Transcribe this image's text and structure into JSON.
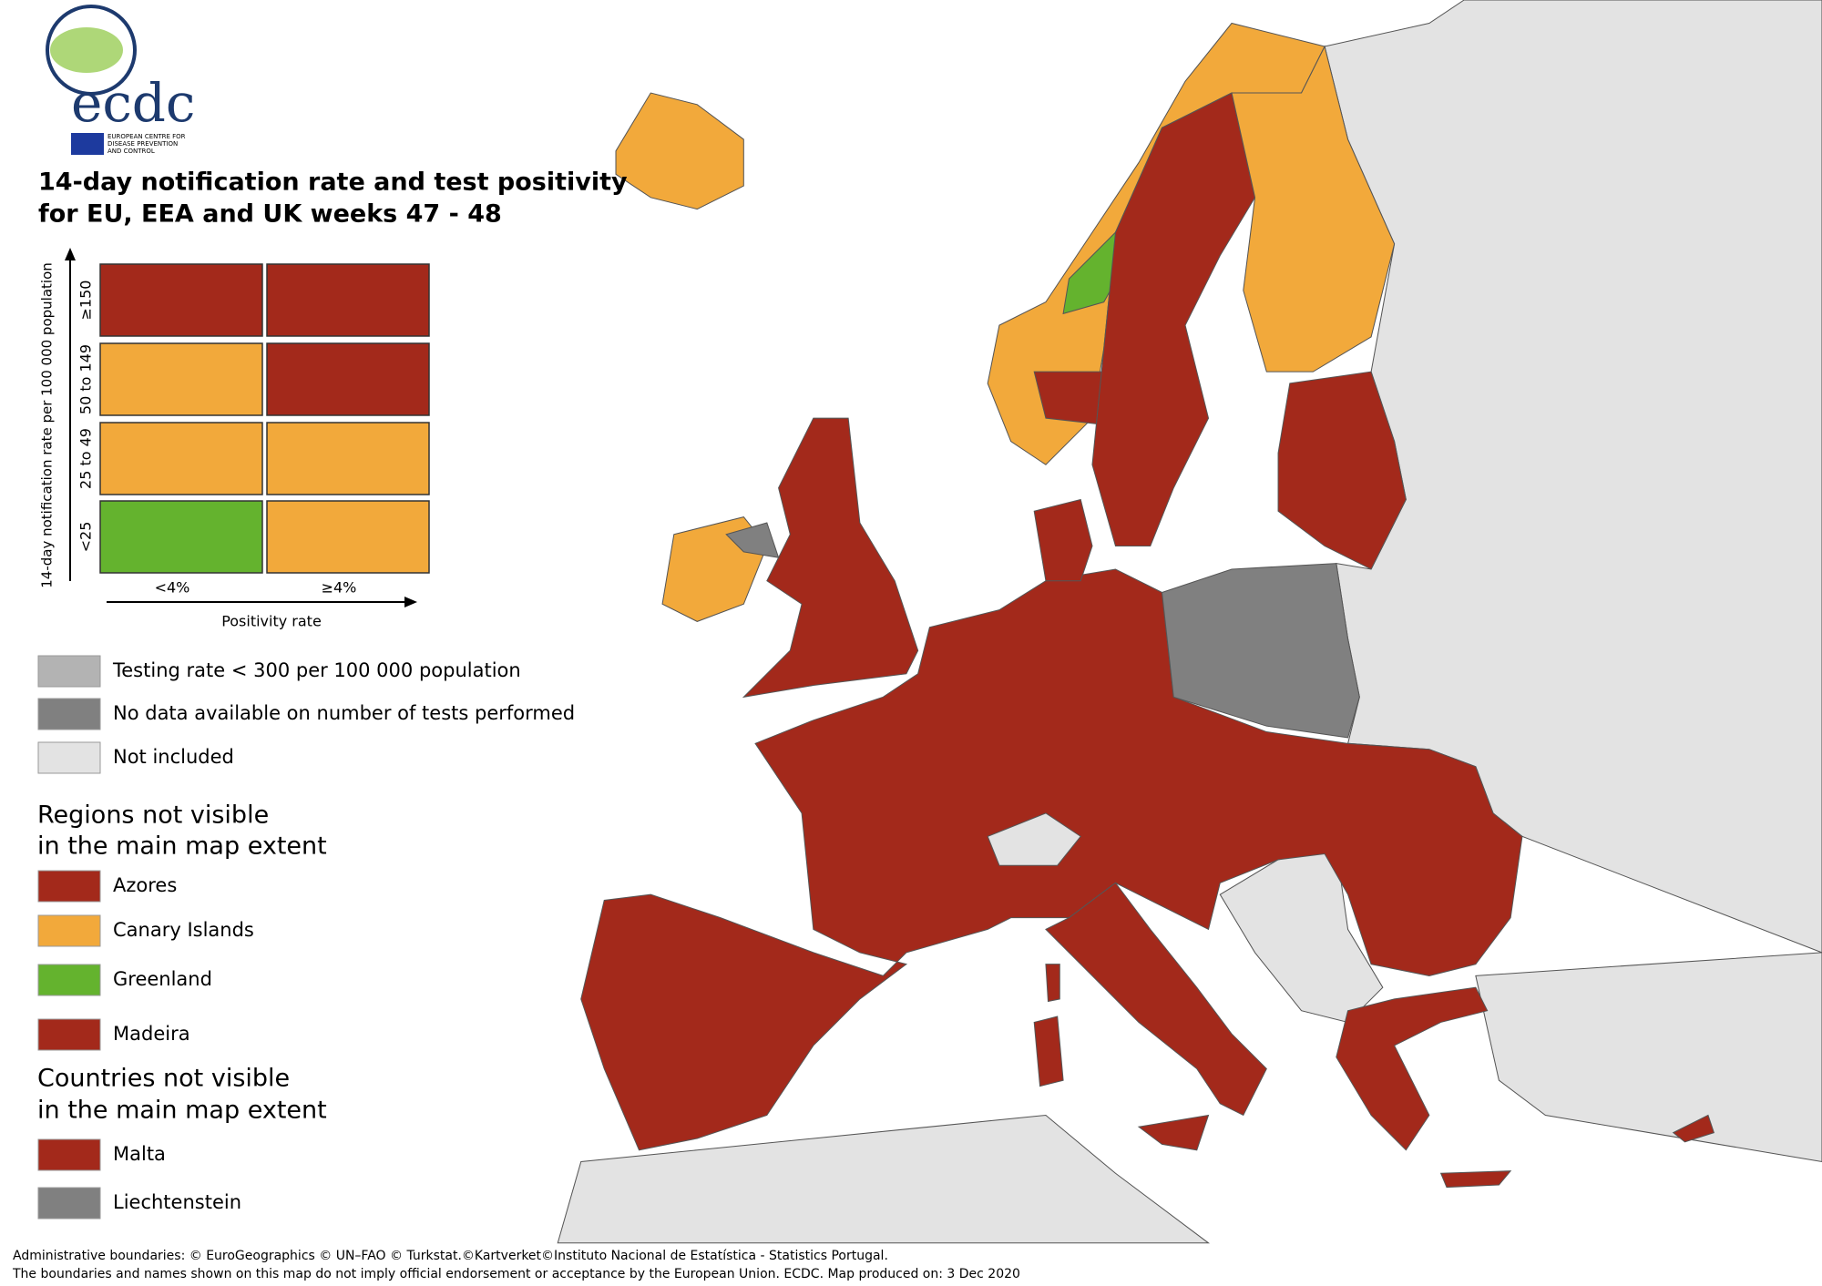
{
  "logo": {
    "name": "ecdc",
    "subtitle": [
      "EUROPEAN CENTRE FOR",
      "DISEASE PREVENTION",
      "AND CONTROL"
    ]
  },
  "title": [
    "14-day notification rate and test positivity",
    "for EU, EEA and UK weeks 47 - 48"
  ],
  "matrix": {
    "y_axis_label": "14-day notification rate per 100 000 population",
    "rows": [
      {
        "label": "≥150",
        "colors": [
          "#a3291b",
          "#a3291b"
        ]
      },
      {
        "label": "50 to 149",
        "colors": [
          "#f2a93b",
          "#a3291b"
        ]
      },
      {
        "label": "25 to 49",
        "colors": [
          "#f2a93b",
          "#f2a93b"
        ]
      },
      {
        "label": "<25",
        "colors": [
          "#64b32e",
          "#f2a93b"
        ]
      }
    ],
    "columns": [
      "<4%",
      "≥4%"
    ],
    "x_axis_label": "Positivity rate"
  },
  "legend": [
    {
      "label": "Testing rate < 300 per 100 000 population",
      "color": "#b3b3b3"
    },
    {
      "label": "No data available on number of tests performed",
      "color": "#808080"
    },
    {
      "label": "Not included",
      "color": "#e3e3e3"
    }
  ],
  "regions": {
    "heading": [
      "Regions not visible",
      "in the main map extent"
    ],
    "items": [
      {
        "label": "Azores",
        "color": "#a3291b"
      },
      {
        "label": "Canary Islands",
        "color": "#f2a93b"
      },
      {
        "label": "Greenland",
        "color": "#64b32e"
      },
      {
        "label": "Madeira",
        "color": "#a3291b"
      }
    ]
  },
  "countries": {
    "heading": [
      "Countries not visible",
      "in the main map extent"
    ],
    "items": [
      {
        "label": "Malta",
        "color": "#a3291b"
      },
      {
        "label": "Liechtenstein",
        "color": "#808080"
      }
    ]
  },
  "footer": [
    "Administrative boundaries: © EuroGeographics © UN–FAO © Turkstat.©Kartverket©Instituto Nacional de Estatística - Statistics Portugal.",
    "The boundaries and names shown on this map do not imply official endorsement or acceptance by the European Union. ECDC. Map produced on: 3 Dec 2020"
  ]
}
